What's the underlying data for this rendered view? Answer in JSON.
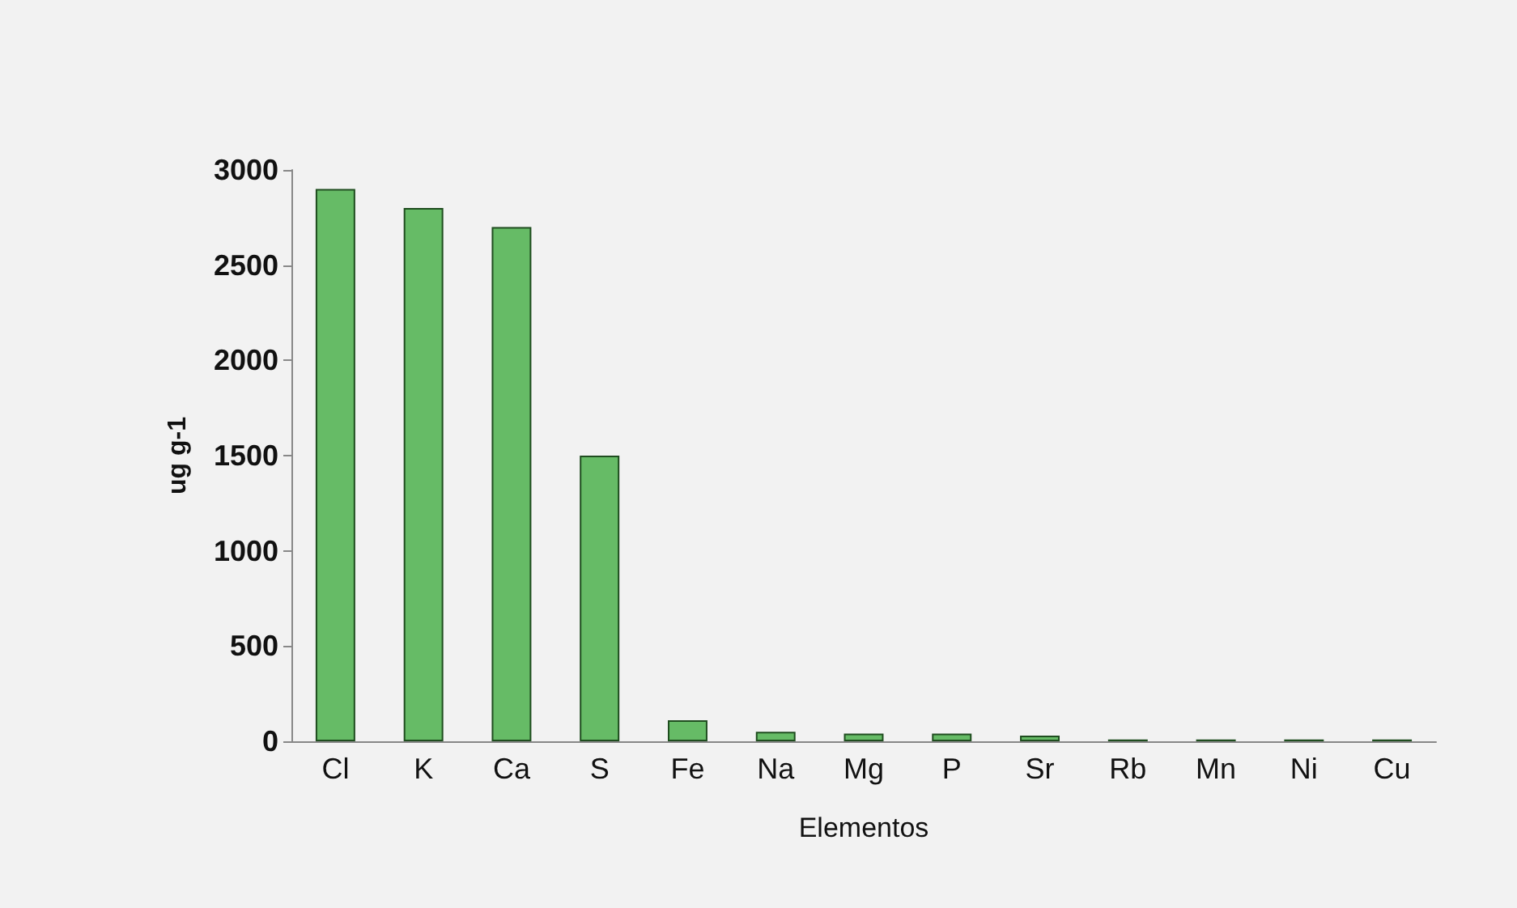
{
  "chart_data": {
    "type": "bar",
    "xlabel": "Elementos",
    "ylabel": "ug g-1",
    "categories": [
      "Cl",
      "K",
      "Ca",
      "S",
      "Fe",
      "Na",
      "Mg",
      "P",
      "Sr",
      "Rb",
      "Mn",
      "Ni",
      "Cu"
    ],
    "values": [
      2900,
      2800,
      2700,
      1500,
      110,
      50,
      40,
      40,
      30,
      10,
      10,
      10,
      10
    ],
    "color": "#66bb66",
    "ylim": [
      0,
      3000
    ],
    "yticks": [
      0,
      500,
      1000,
      1500,
      2000,
      2500,
      3000
    ],
    "grid": false
  }
}
